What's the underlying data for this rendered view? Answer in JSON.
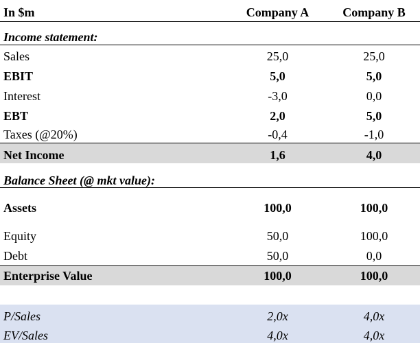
{
  "header": {
    "unit_label": "In $m",
    "company_a": "Company A",
    "company_b": "Company B"
  },
  "income_statement": {
    "title": "Income statement:",
    "rows": [
      {
        "label": "Sales",
        "a": "25,0",
        "b": "25,0"
      },
      {
        "label": "EBIT",
        "a": "5,0",
        "b": "5,0"
      },
      {
        "label": "Interest",
        "a": "-3,0",
        "b": "0,0"
      },
      {
        "label": "EBT",
        "a": "2,0",
        "b": "5,0"
      },
      {
        "label": "Taxes (@20%)",
        "a": "-0,4",
        "b": "-1,0"
      },
      {
        "label": "Net Income",
        "a": "1,6",
        "b": "4,0"
      }
    ]
  },
  "balance_sheet": {
    "title": "Balance Sheet (@ mkt value):",
    "rows": [
      {
        "label": "Assets",
        "a": "100,0",
        "b": "100,0"
      },
      {
        "label": "Equity",
        "a": "50,0",
        "b": "100,0"
      },
      {
        "label": "Debt",
        "a": "50,0",
        "b": "0,0"
      },
      {
        "label": "Enterprise Value",
        "a": "100,0",
        "b": "100,0"
      }
    ]
  },
  "multiples": {
    "rows": [
      {
        "label": "P/Sales",
        "a": "2,0x",
        "b": "4,0x"
      },
      {
        "label": "EV/Sales",
        "a": "4,0x",
        "b": "4,0x"
      }
    ]
  },
  "colors": {
    "net_income_band": "#d9d9d9",
    "multiples_band": "#dae1f1"
  }
}
